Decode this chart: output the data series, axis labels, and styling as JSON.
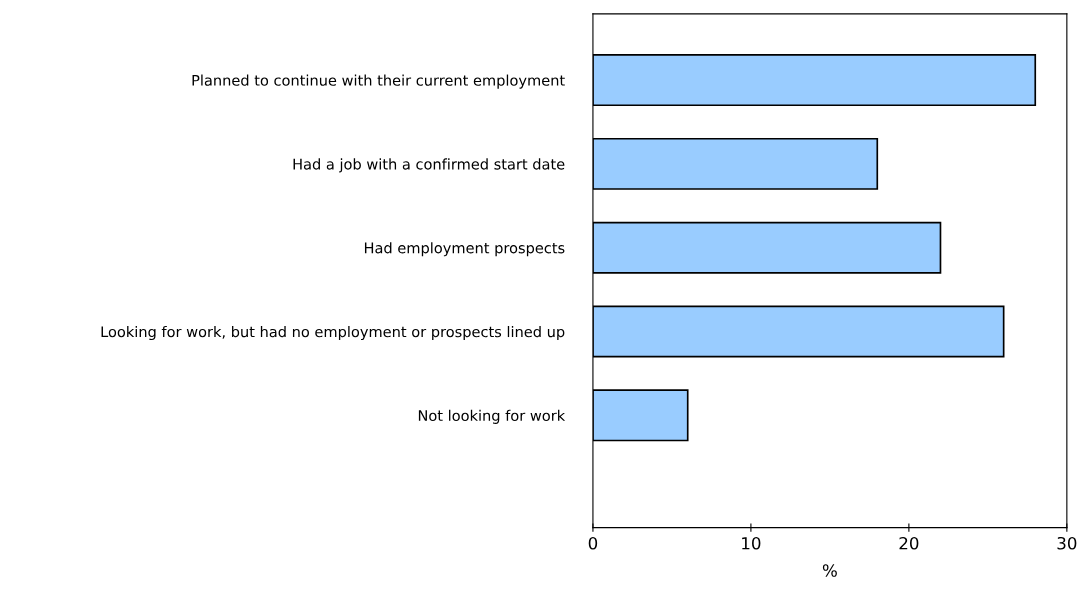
{
  "chart_data": {
    "type": "bar",
    "orientation": "horizontal",
    "xlabel": "%",
    "categories": [
      "Planned to continue with their current employment",
      "Had a job with a confirmed start date",
      "Had employment prospects",
      "Looking for work, but had no employment or prospects lined up",
      "Not looking for work"
    ],
    "values": [
      28,
      18,
      22,
      26,
      6
    ],
    "color": "#99ccff",
    "xlim": [
      0,
      30
    ],
    "xticks": [
      0,
      10,
      20,
      30
    ],
    "grid": false,
    "legend": false
  }
}
